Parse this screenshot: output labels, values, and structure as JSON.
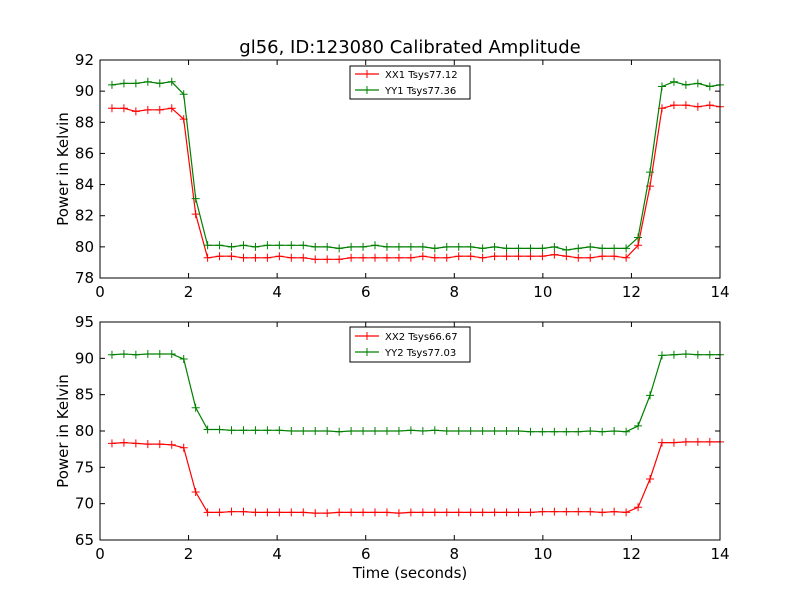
{
  "chart_data": [
    {
      "type": "line",
      "title": "gl56, ID:123080 Calibrated Amplitude",
      "xlabel": "",
      "ylabel": "Power in Kelvin",
      "xlim": [
        0,
        14
      ],
      "ylim": [
        78,
        92
      ],
      "xticks": [
        0,
        2,
        4,
        6,
        8,
        10,
        12,
        14
      ],
      "yticks": [
        78,
        80,
        82,
        84,
        86,
        88,
        90,
        92
      ],
      "grid": false,
      "legend_position": "top-center",
      "x": [
        0.27,
        0.54,
        0.81,
        1.08,
        1.35,
        1.62,
        1.89,
        2.16,
        2.43,
        2.7,
        2.97,
        3.24,
        3.51,
        3.78,
        4.05,
        4.32,
        4.59,
        4.86,
        5.13,
        5.4,
        5.67,
        5.94,
        6.21,
        6.48,
        6.75,
        7.02,
        7.29,
        7.56,
        7.83,
        8.1,
        8.37,
        8.64,
        8.91,
        9.18,
        9.45,
        9.72,
        9.99,
        10.26,
        10.53,
        10.8,
        11.07,
        11.34,
        11.61,
        11.88,
        12.15,
        12.42,
        12.69,
        12.96,
        13.23,
        13.5,
        13.77,
        14.0
      ],
      "series": [
        {
          "name": "XX1 Tsys77.12",
          "color": "#ff0000",
          "values": [
            88.9,
            88.9,
            88.7,
            88.8,
            88.8,
            88.9,
            88.2,
            82.1,
            79.3,
            79.4,
            79.4,
            79.3,
            79.3,
            79.3,
            79.4,
            79.3,
            79.3,
            79.2,
            79.2,
            79.2,
            79.3,
            79.3,
            79.3,
            79.3,
            79.3,
            79.3,
            79.4,
            79.3,
            79.3,
            79.4,
            79.4,
            79.3,
            79.4,
            79.4,
            79.4,
            79.4,
            79.4,
            79.5,
            79.4,
            79.3,
            79.3,
            79.4,
            79.4,
            79.3,
            80.1,
            83.9,
            88.9,
            89.1,
            89.1,
            89.0,
            89.1,
            89.0
          ]
        },
        {
          "name": "YY1 Tsys77.36",
          "color": "#008000",
          "values": [
            90.4,
            90.5,
            90.5,
            90.6,
            90.5,
            90.6,
            89.8,
            83.1,
            80.1,
            80.1,
            80.0,
            80.1,
            80.0,
            80.1,
            80.1,
            80.1,
            80.1,
            80.0,
            80.0,
            79.9,
            80.0,
            80.0,
            80.1,
            80.0,
            80.0,
            80.0,
            80.0,
            79.9,
            80.0,
            80.0,
            80.0,
            79.9,
            80.0,
            79.9,
            79.9,
            79.9,
            79.9,
            80.0,
            79.8,
            79.9,
            80.0,
            79.9,
            79.9,
            79.9,
            80.6,
            84.8,
            90.3,
            90.6,
            90.4,
            90.5,
            90.3,
            90.4
          ]
        }
      ]
    },
    {
      "type": "line",
      "title": "",
      "xlabel": "Time (seconds)",
      "ylabel": "Power in Kelvin",
      "xlim": [
        0,
        14
      ],
      "ylim": [
        65,
        95
      ],
      "xticks": [
        0,
        2,
        4,
        6,
        8,
        10,
        12,
        14
      ],
      "yticks": [
        65,
        70,
        75,
        80,
        85,
        90,
        95
      ],
      "grid": false,
      "legend_position": "top-center",
      "x": [
        0.27,
        0.54,
        0.81,
        1.08,
        1.35,
        1.62,
        1.89,
        2.16,
        2.43,
        2.7,
        2.97,
        3.24,
        3.51,
        3.78,
        4.05,
        4.32,
        4.59,
        4.86,
        5.13,
        5.4,
        5.67,
        5.94,
        6.21,
        6.48,
        6.75,
        7.02,
        7.29,
        7.56,
        7.83,
        8.1,
        8.37,
        8.64,
        8.91,
        9.18,
        9.45,
        9.72,
        9.99,
        10.26,
        10.53,
        10.8,
        11.07,
        11.34,
        11.61,
        11.88,
        12.15,
        12.42,
        12.69,
        12.96,
        13.23,
        13.5,
        13.77,
        14.0
      ],
      "series": [
        {
          "name": "XX2 Tsys66.67",
          "color": "#ff0000",
          "values": [
            78.3,
            78.4,
            78.3,
            78.2,
            78.2,
            78.1,
            77.7,
            71.6,
            68.8,
            68.8,
            68.9,
            68.9,
            68.8,
            68.8,
            68.8,
            68.8,
            68.8,
            68.7,
            68.7,
            68.8,
            68.8,
            68.8,
            68.8,
            68.8,
            68.7,
            68.8,
            68.8,
            68.8,
            68.8,
            68.8,
            68.8,
            68.8,
            68.8,
            68.8,
            68.8,
            68.8,
            68.9,
            68.9,
            68.9,
            68.9,
            68.9,
            68.8,
            68.9,
            68.8,
            69.5,
            73.4,
            78.4,
            78.4,
            78.5,
            78.5,
            78.5,
            78.5
          ]
        },
        {
          "name": "YY2 Tsys77.03",
          "color": "#008000",
          "values": [
            90.5,
            90.6,
            90.5,
            90.6,
            90.6,
            90.6,
            89.9,
            83.2,
            80.2,
            80.2,
            80.1,
            80.1,
            80.1,
            80.1,
            80.1,
            80.0,
            80.0,
            80.0,
            80.0,
            79.9,
            80.0,
            80.0,
            80.0,
            80.0,
            80.0,
            80.1,
            80.0,
            80.1,
            80.0,
            80.0,
            80.0,
            80.0,
            80.0,
            80.0,
            80.0,
            79.9,
            79.9,
            79.9,
            79.9,
            79.9,
            80.0,
            79.9,
            80.0,
            79.9,
            80.7,
            84.9,
            90.4,
            90.5,
            90.6,
            90.5,
            90.5,
            90.5
          ]
        }
      ]
    }
  ]
}
